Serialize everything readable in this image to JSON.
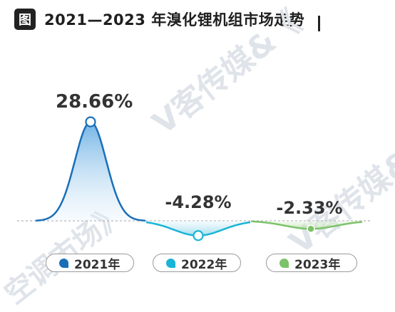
{
  "header": {
    "tag": "图",
    "title": "2021—2023 年溴化锂机组市场走势"
  },
  "watermark": [
    "V客传媒&《",
    "V客传媒&",
    "空调市场》"
  ],
  "chart_data": {
    "type": "area",
    "title": "2021—2023 年溴化锂机组市场走势",
    "unit": "%",
    "series": [
      {
        "name": "2021年",
        "value": 28.66,
        "label": "28.66%",
        "color": "#1a6fb8",
        "fill": "#8fc3ea"
      },
      {
        "name": "2022年",
        "value": -4.28,
        "label": "-4.28%",
        "color": "#19b4d6",
        "fill": "#a6dff0"
      },
      {
        "name": "2023年",
        "value": -2.33,
        "label": "-2.33%",
        "color": "#7cc26a",
        "fill": "#c7e7bb"
      }
    ],
    "baseline": 0,
    "ylim": [
      -6,
      32
    ],
    "legend_position": "bottom"
  }
}
